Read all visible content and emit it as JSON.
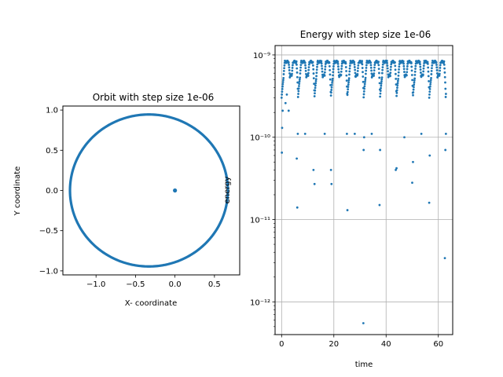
{
  "colors": {
    "series": "#1f77b4",
    "grid": "#b0b0b0"
  },
  "chart_data": [
    {
      "type": "scatter",
      "title": "Orbit with step size 1e-06",
      "xlabel": "X- coordinate",
      "ylabel": "Y coordinate",
      "xlim": [
        -1.42,
        0.82
      ],
      "ylim": [
        -1.05,
        1.05
      ],
      "xticks": [
        -1.0,
        -0.5,
        0.0,
        0.5
      ],
      "xtick_labels": [
        "−1.0",
        "−0.5",
        "0.0",
        "0.5"
      ],
      "yticks": [
        -1.0,
        -0.5,
        0.0,
        0.5,
        1.0
      ],
      "ytick_labels": [
        "−1.0",
        "−0.5",
        "0.0",
        "0.5",
        "1.0"
      ],
      "grid": false,
      "series": [
        {
          "kind": "ellipse",
          "center": [
            -0.33,
            0.0
          ],
          "semi_axis_x": 1.0,
          "semi_axis_y": 0.945
        },
        {
          "kind": "point",
          "x": [
            0.0
          ],
          "y": [
            0.0
          ]
        }
      ]
    },
    {
      "type": "scatter",
      "title": "Energy with step size 1e-06",
      "xlabel": "time",
      "ylabel": "energy",
      "xlim": [
        -2.5,
        65.5
      ],
      "ylim": [
        4e-13,
        1.3e-09
      ],
      "yscale": "log",
      "xticks": [
        0,
        20,
        40,
        60
      ],
      "xtick_labels": [
        "0",
        "20",
        "40",
        "60"
      ],
      "yticks": [
        1e-12,
        1e-11,
        1e-10,
        1e-09
      ],
      "ytick_labels": [
        "10⁻¹²",
        "10⁻¹¹",
        "10⁻¹⁰",
        "10⁻⁹"
      ],
      "grid": true,
      "series": [
        {
          "kind": "points",
          "x": [
            0.1,
            0.2,
            0.4,
            1.5,
            2.0,
            2.7,
            5.8,
            6.0,
            6.2,
            9.0,
            12.2,
            12.6,
            16.5,
            18.9,
            19.1,
            25.0,
            25.2,
            28.0,
            31.3,
            31.4,
            31.6,
            34.5,
            37.5,
            37.7,
            43.7,
            44.0,
            47.0,
            50.0,
            50.3,
            53.5,
            56.5,
            56.7,
            62.5,
            62.7,
            62.9
          ],
          "y": [
            6.5e-11,
            1.3e-10,
            2.1e-10,
            2.6e-10,
            3.3e-10,
            2.1e-10,
            5.5e-11,
            1.4e-11,
            1.1e-10,
            1.1e-10,
            4e-11,
            2.7e-11,
            1.1e-10,
            4e-11,
            2.7e-11,
            1.1e-10,
            1.3e-11,
            1.1e-10,
            5.5e-13,
            7e-11,
            1e-10,
            1.1e-10,
            1.5e-11,
            7e-11,
            4e-11,
            4.2e-11,
            1e-10,
            2.8e-11,
            5e-11,
            1.1e-10,
            1.6e-11,
            6e-11,
            3.4e-12,
            7e-11,
            1.1e-10
          ]
        },
        {
          "kind": "band",
          "period": 6.28,
          "high": 8.5e-10,
          "mid": 5.5e-10,
          "x_range": [
            0.0,
            63.0
          ]
        }
      ]
    }
  ]
}
